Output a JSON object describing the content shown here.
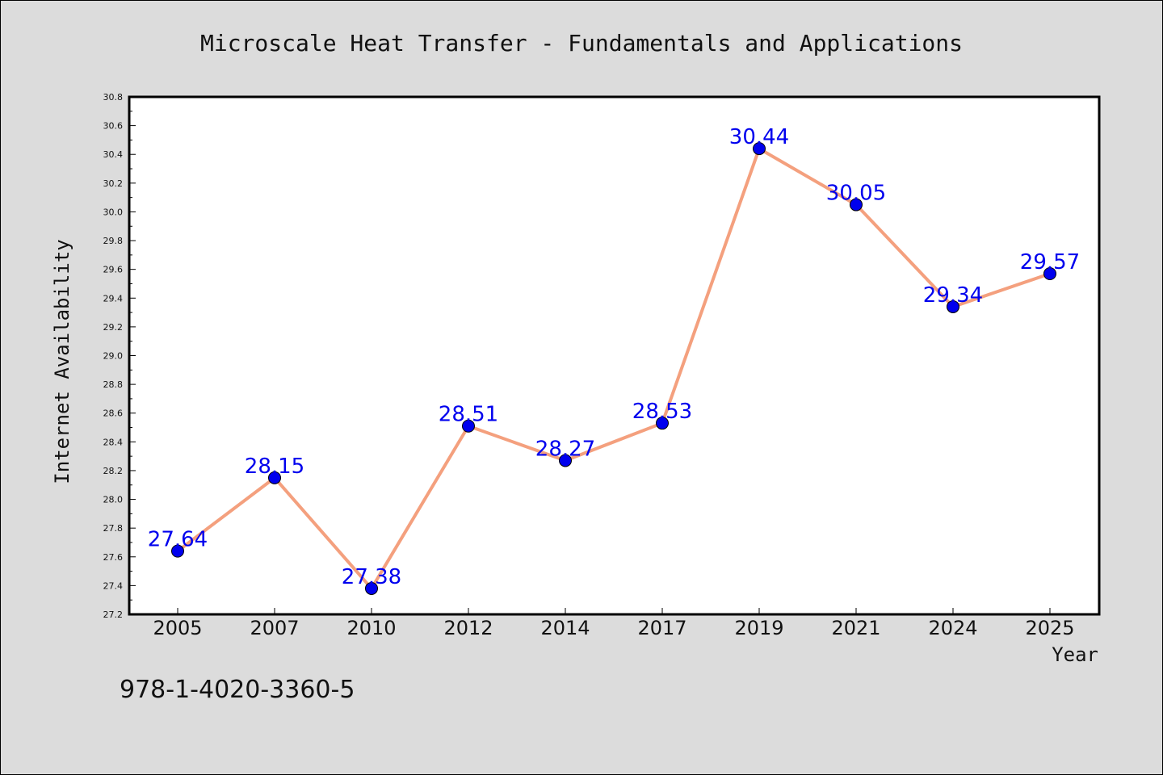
{
  "chart_data": {
    "type": "line",
    "title": "Microscale Heat Transfer - Fundamentals and Applications",
    "xlabel": "Year",
    "ylabel": "Internet Availability",
    "categories": [
      "2005",
      "2007",
      "2010",
      "2012",
      "2014",
      "2017",
      "2019",
      "2021",
      "2024",
      "2025"
    ],
    "values": [
      27.64,
      28.15,
      27.38,
      28.51,
      28.27,
      28.53,
      30.44,
      30.05,
      29.34,
      29.57
    ],
    "data_labels": [
      "27.64",
      "28.15",
      "27.38",
      "28.51",
      "28.27",
      "28.53",
      "30.44",
      "30.05",
      "29.34",
      "29.57"
    ],
    "ylim": [
      27.2,
      30.8
    ],
    "yticks": [
      "27.2",
      "27.4",
      "27.6",
      "27.8",
      "28.0",
      "28.2",
      "28.4",
      "28.6",
      "28.8",
      "29.0",
      "29.2",
      "29.4",
      "29.6",
      "29.8",
      "30.0",
      "30.2",
      "30.4",
      "30.6",
      "30.8"
    ],
    "grid": false,
    "colors": {
      "line": "#f4a07e",
      "marker": "#0000ee",
      "label": "#0000ee"
    }
  },
  "footer_text": "978-1-4020-3360-5"
}
